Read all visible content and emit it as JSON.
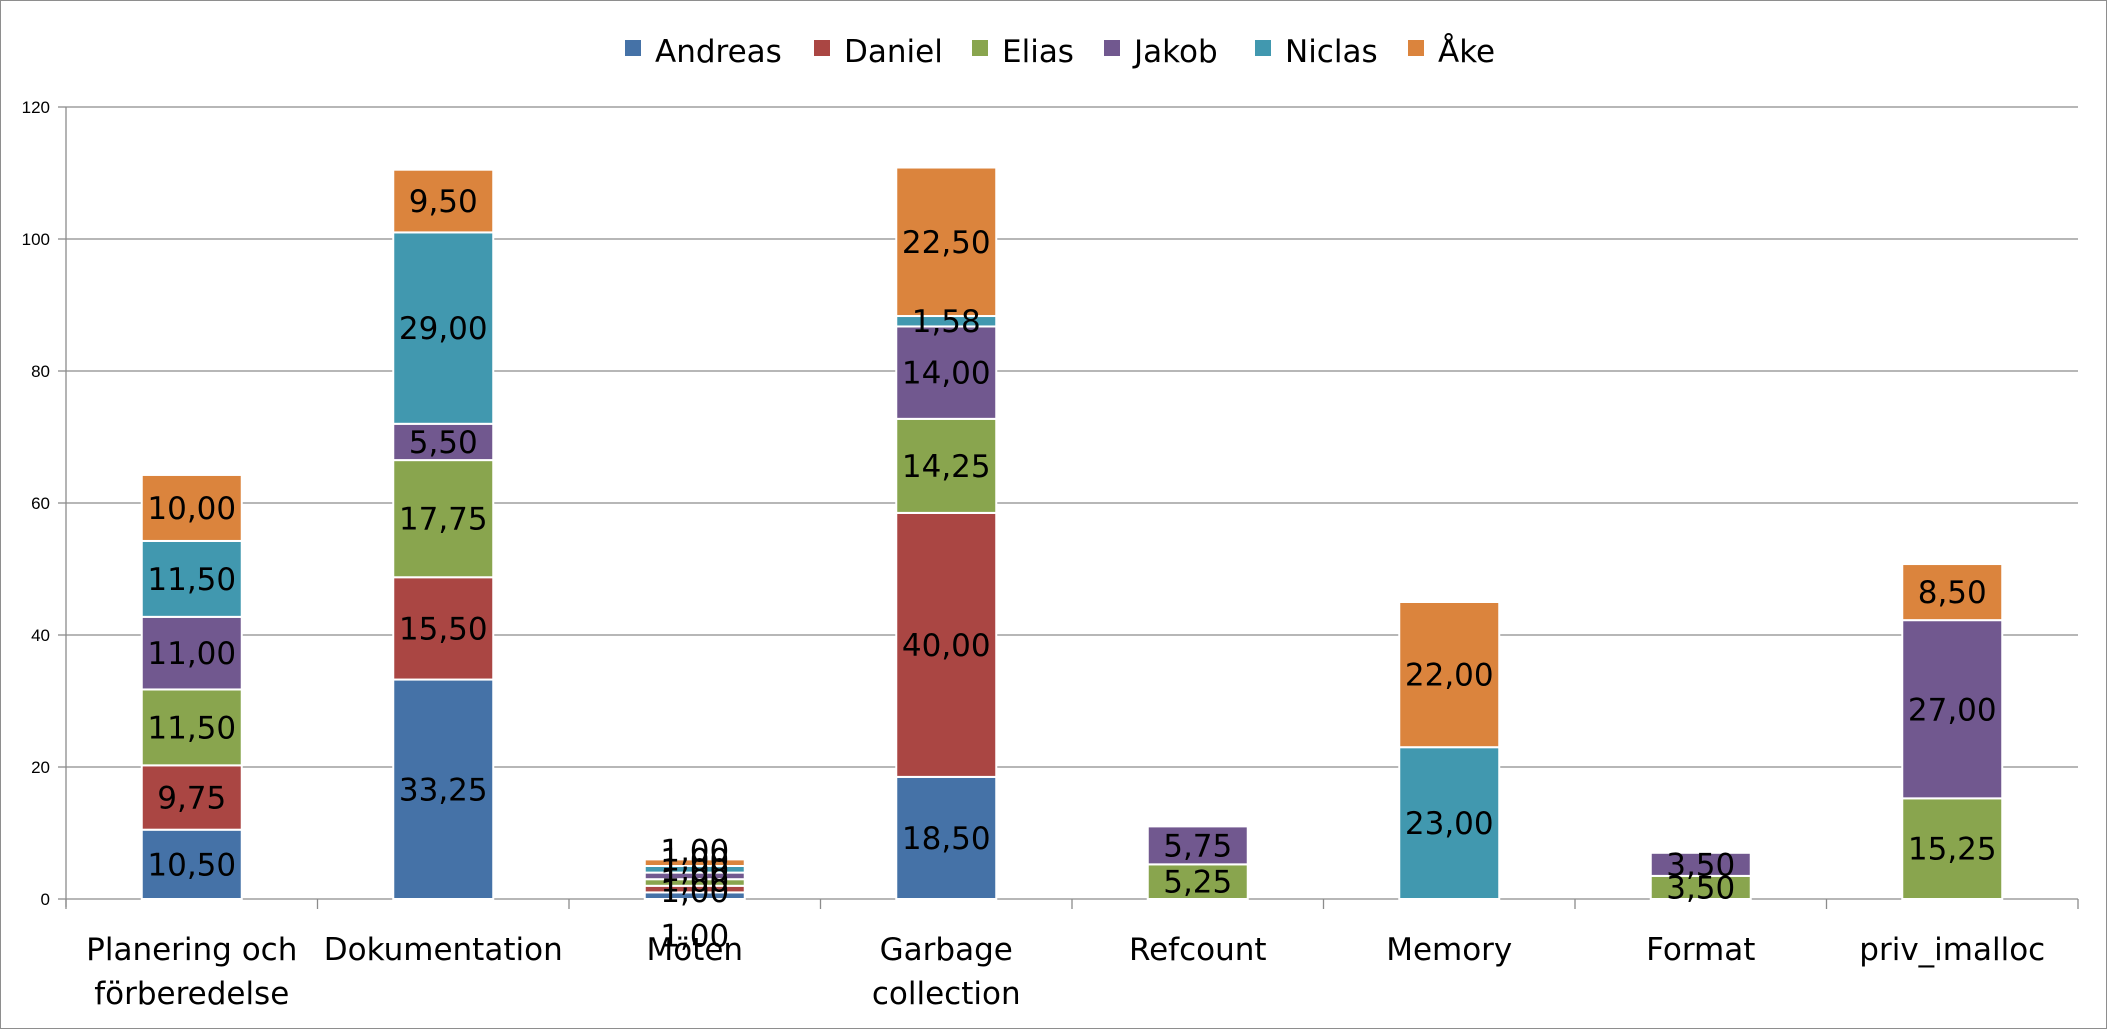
{
  "chart_data": {
    "type": "bar",
    "stacked": true,
    "title": "",
    "xlabel": "",
    "ylabel": "",
    "ylim": [
      0,
      120
    ],
    "yticks": [
      "0",
      "20",
      "40",
      "60",
      "80",
      "100",
      "120"
    ],
    "grid": true,
    "legend_position": "top",
    "categories": [
      [
        "Planering och",
        "förberedelse"
      ],
      [
        "Dokumentation"
      ],
      [
        "Möten"
      ],
      [
        "Garbage",
        "collection"
      ],
      [
        "Refcount"
      ],
      [
        "Memory"
      ],
      [
        "Format"
      ],
      [
        "priv_imalloc"
      ]
    ],
    "series": [
      {
        "name": "Andreas",
        "color": "#4572a7",
        "values": [
          10.5,
          33.25,
          1.0,
          18.5,
          null,
          null,
          null,
          null
        ],
        "labels": [
          "10,50",
          "33,25",
          "1,00",
          "18,50",
          null,
          null,
          null,
          null
        ]
      },
      {
        "name": "Daniel",
        "color": "#aa4643",
        "values": [
          9.75,
          15.5,
          1.0,
          40.0,
          null,
          null,
          null,
          null
        ],
        "labels": [
          "9,75",
          "15,50",
          "1,00",
          "40,00",
          null,
          null,
          null,
          null
        ]
      },
      {
        "name": "Elias",
        "color": "#89a54e",
        "values": [
          11.5,
          17.75,
          1.0,
          14.25,
          5.25,
          null,
          3.5,
          15.25
        ],
        "labels": [
          "11,50",
          "17,75",
          "1,00",
          "14,25",
          "5,25",
          null,
          "3,50",
          "15,25"
        ]
      },
      {
        "name": "Jakob",
        "color": "#71588f",
        "values": [
          11.0,
          5.5,
          1.0,
          14.0,
          5.75,
          null,
          3.5,
          27.0
        ],
        "labels": [
          "11,00",
          "5,50",
          "1,00",
          "14,00",
          "5,75",
          null,
          "3,50",
          "27,00"
        ]
      },
      {
        "name": "Niclas",
        "color": "#4198af",
        "values": [
          11.5,
          29.0,
          1.0,
          1.58,
          null,
          23.0,
          null,
          null
        ],
        "labels": [
          "11,50",
          "29,00",
          "1,00",
          "1,58",
          null,
          "23,00",
          null,
          null
        ]
      },
      {
        "name": "Åke",
        "color": "#db843d",
        "values": [
          10.0,
          9.5,
          1.0,
          22.5,
          null,
          22.0,
          null,
          8.5
        ],
        "labels": [
          "10,00",
          "9,50",
          "1,00",
          "22,50",
          null,
          "22,00",
          null,
          "8,50"
        ]
      }
    ]
  }
}
